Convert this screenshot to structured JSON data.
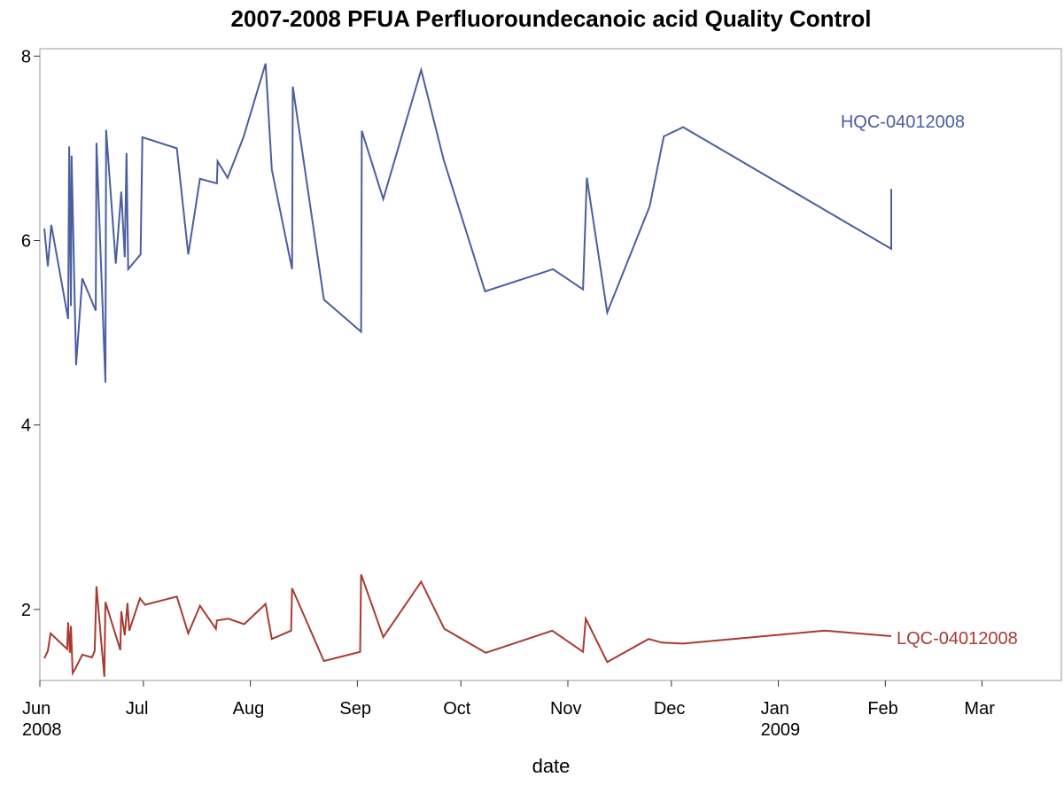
{
  "chart_data": {
    "type": "line",
    "title": "2007-2008 PFUA Perfluoroundecanoic acid Quality Control",
    "x_label": "date",
    "xlim": [
      0,
      296
    ],
    "ylim": [
      1.23,
      8.08
    ],
    "xticks": [
      {
        "value": 0,
        "label": "Jun\n2008"
      },
      {
        "value": 30,
        "label": "Jul"
      },
      {
        "value": 61,
        "label": "Aug"
      },
      {
        "value": 92,
        "label": "Sep"
      },
      {
        "value": 122,
        "label": "Oct"
      },
      {
        "value": 153,
        "label": "Nov"
      },
      {
        "value": 183,
        "label": "Dec"
      },
      {
        "value": 214,
        "label": "Jan\n2009"
      },
      {
        "value": 245,
        "label": "Feb"
      },
      {
        "value": 273,
        "label": "Mar"
      }
    ],
    "yticks": [
      2,
      4,
      6,
      8
    ],
    "series": [
      {
        "name": "HQC-04012008",
        "color": "#4a5ea0",
        "x": [
          1.3,
          2.3,
          3.3,
          8.2,
          8.5,
          9,
          9.2,
          10.5,
          12.3,
          16.2,
          16.4,
          19,
          19.2,
          22,
          23.6,
          24.6,
          25.1,
          25.6,
          29.2,
          29.7,
          39.7,
          43,
          46.4,
          51.3,
          51.5,
          54.4,
          59,
          65.4,
          67.2,
          73.1,
          73.3,
          82.3,
          93.1,
          93.3,
          99.5,
          110.5,
          117,
          129,
          148.7,
          157.4,
          158.5,
          164.4,
          176.7,
          180.8,
          186.4,
          246.7,
          246.7
        ],
        "values": [
          6.13,
          5.72,
          6.17,
          5.15,
          7.02,
          5.29,
          6.92,
          4.65,
          5.59,
          5.24,
          7.06,
          4.46,
          7.2,
          5.75,
          6.53,
          5.82,
          6.95,
          5.69,
          5.85,
          7.12,
          7.0,
          5.85,
          6.67,
          6.62,
          6.86,
          6.68,
          7.12,
          7.92,
          6.77,
          5.69,
          7.67,
          5.36,
          5.01,
          7.19,
          6.45,
          7.85,
          6.88,
          5.45,
          5.69,
          5.47,
          6.68,
          5.22,
          6.37,
          7.13,
          7.23,
          5.91,
          6.56
        ]
      },
      {
        "name": "LQC-04012008",
        "color": "#a83a30",
        "x": [
          1.3,
          2.3,
          3.1,
          7.9,
          8.2,
          8.7,
          9,
          9.5,
          10.3,
          12.3,
          15.1,
          15.9,
          16.4,
          17.7,
          18.7,
          19,
          23.3,
          23.6,
          24.6,
          25.4,
          25.9,
          29,
          30.5,
          39.7,
          43,
          46.4,
          51,
          51.3,
          54.6,
          59.2,
          65.4,
          67.2,
          72.8,
          73.1,
          82.3,
          92.8,
          93.1,
          99.5,
          110.5,
          117.2,
          129.2,
          148.5,
          157.4,
          158.2,
          164.4,
          176.4,
          180.3,
          186.4,
          227.4,
          246.7
        ],
        "values": [
          1.47,
          1.55,
          1.74,
          1.57,
          1.86,
          1.53,
          1.82,
          1.31,
          1.36,
          1.51,
          1.48,
          1.55,
          2.25,
          1.69,
          1.27,
          2.08,
          1.56,
          1.98,
          1.72,
          2.07,
          1.77,
          2.12,
          2.05,
          2.14,
          1.74,
          2.04,
          1.79,
          1.88,
          1.9,
          1.84,
          2.06,
          1.68,
          1.77,
          2.23,
          1.44,
          1.54,
          2.38,
          1.7,
          2.3,
          1.79,
          1.53,
          1.77,
          1.54,
          1.9,
          1.43,
          1.68,
          1.64,
          1.63,
          1.77,
          1.71
        ]
      }
    ]
  }
}
